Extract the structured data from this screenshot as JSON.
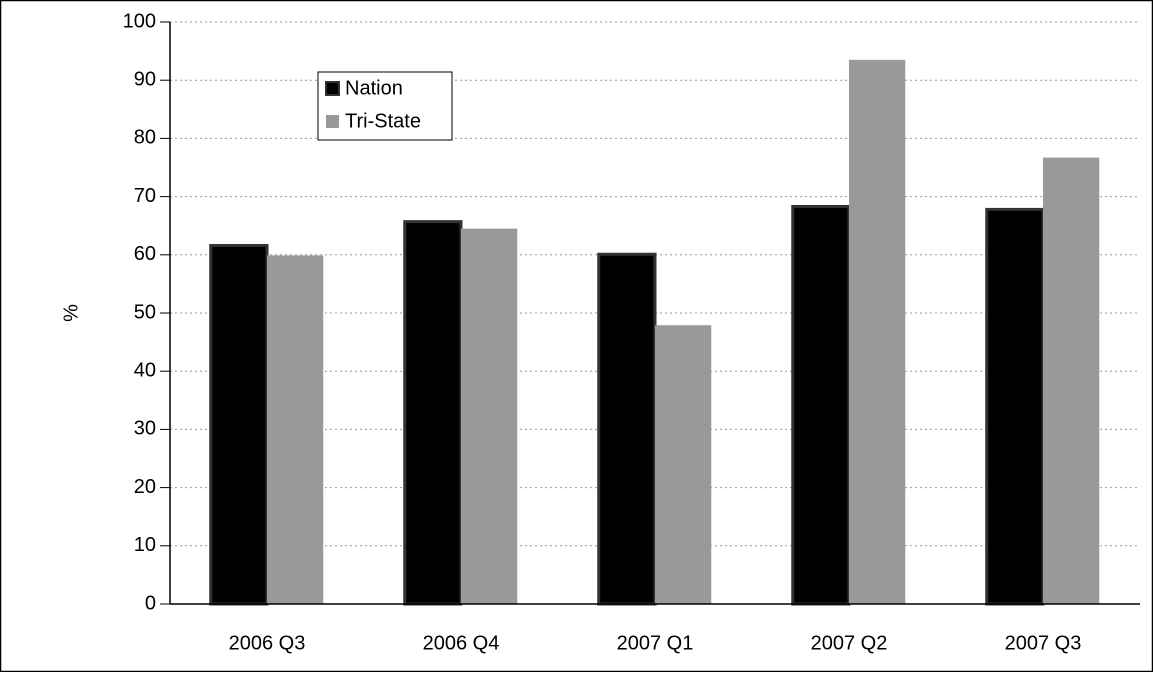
{
  "chart_data": {
    "type": "bar",
    "y_label": "%",
    "categories": [
      "2006 Q3",
      "2006 Q4",
      "2007 Q1",
      "2007 Q2",
      "2007 Q3"
    ],
    "series": [
      {
        "name": "Nation",
        "color": "#000000",
        "values": [
          61.6,
          65.7,
          60.1,
          68.3,
          67.8
        ]
      },
      {
        "name": "Tri-State",
        "color": "#999999",
        "values": [
          59.9,
          64.5,
          47.9,
          93.5,
          76.7
        ]
      }
    ],
    "ylim": [
      0,
      100
    ],
    "yticks": [
      0,
      10,
      20,
      30,
      40,
      50,
      60,
      70,
      80,
      90,
      100
    ],
    "grid": true,
    "legend": "upper left"
  }
}
